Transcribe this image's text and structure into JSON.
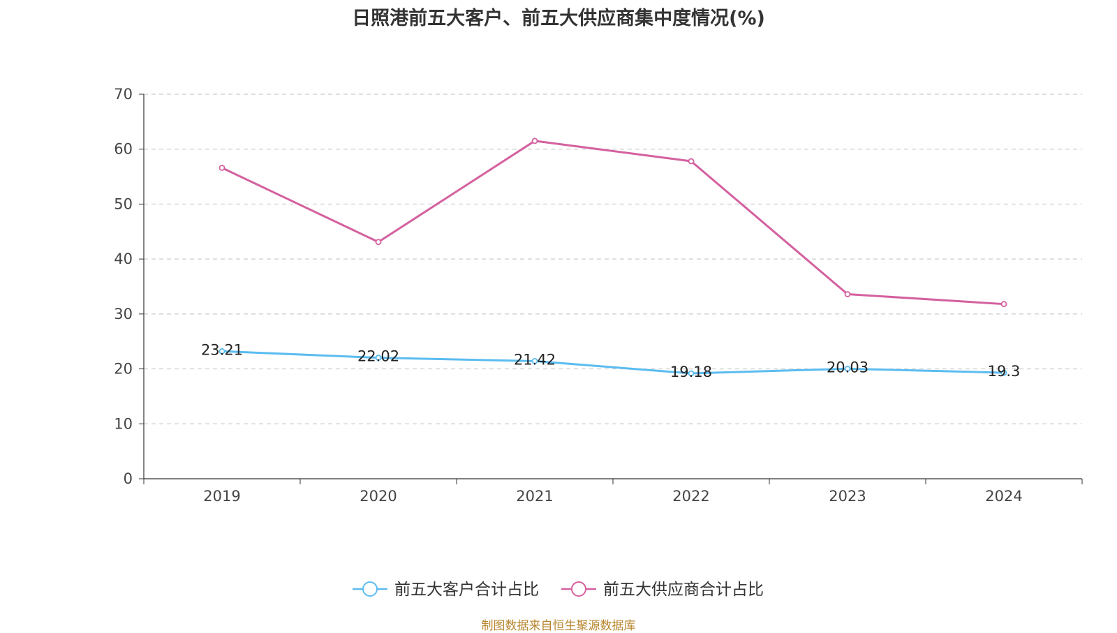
{
  "chart_data": {
    "type": "line",
    "title": "日照港前五大客户、前五大供应商集中度情况(%)",
    "categories": [
      "2019",
      "2020",
      "2021",
      "2022",
      "2023",
      "2024"
    ],
    "ylim": [
      0,
      70
    ],
    "yticks": [
      0,
      10,
      20,
      30,
      40,
      50,
      60,
      70
    ],
    "grid": true,
    "legend_position": "bottom-center",
    "series": [
      {
        "name": "前五大客户合计占比",
        "color": "#5bbcf0",
        "values": [
          23.21,
          22.02,
          21.42,
          19.18,
          20.03,
          19.3
        ],
        "labels": [
          "23.21",
          "22.02",
          "21.42",
          "19.18",
          "20.03",
          "19.3"
        ],
        "show_labels": true
      },
      {
        "name": "前五大供应商合计占比",
        "color": "#d4619f",
        "values": [
          56.6,
          43.1,
          61.5,
          57.8,
          33.6,
          31.8
        ],
        "show_labels": false
      }
    ]
  },
  "source": "制图数据来自恒生聚源数据库"
}
